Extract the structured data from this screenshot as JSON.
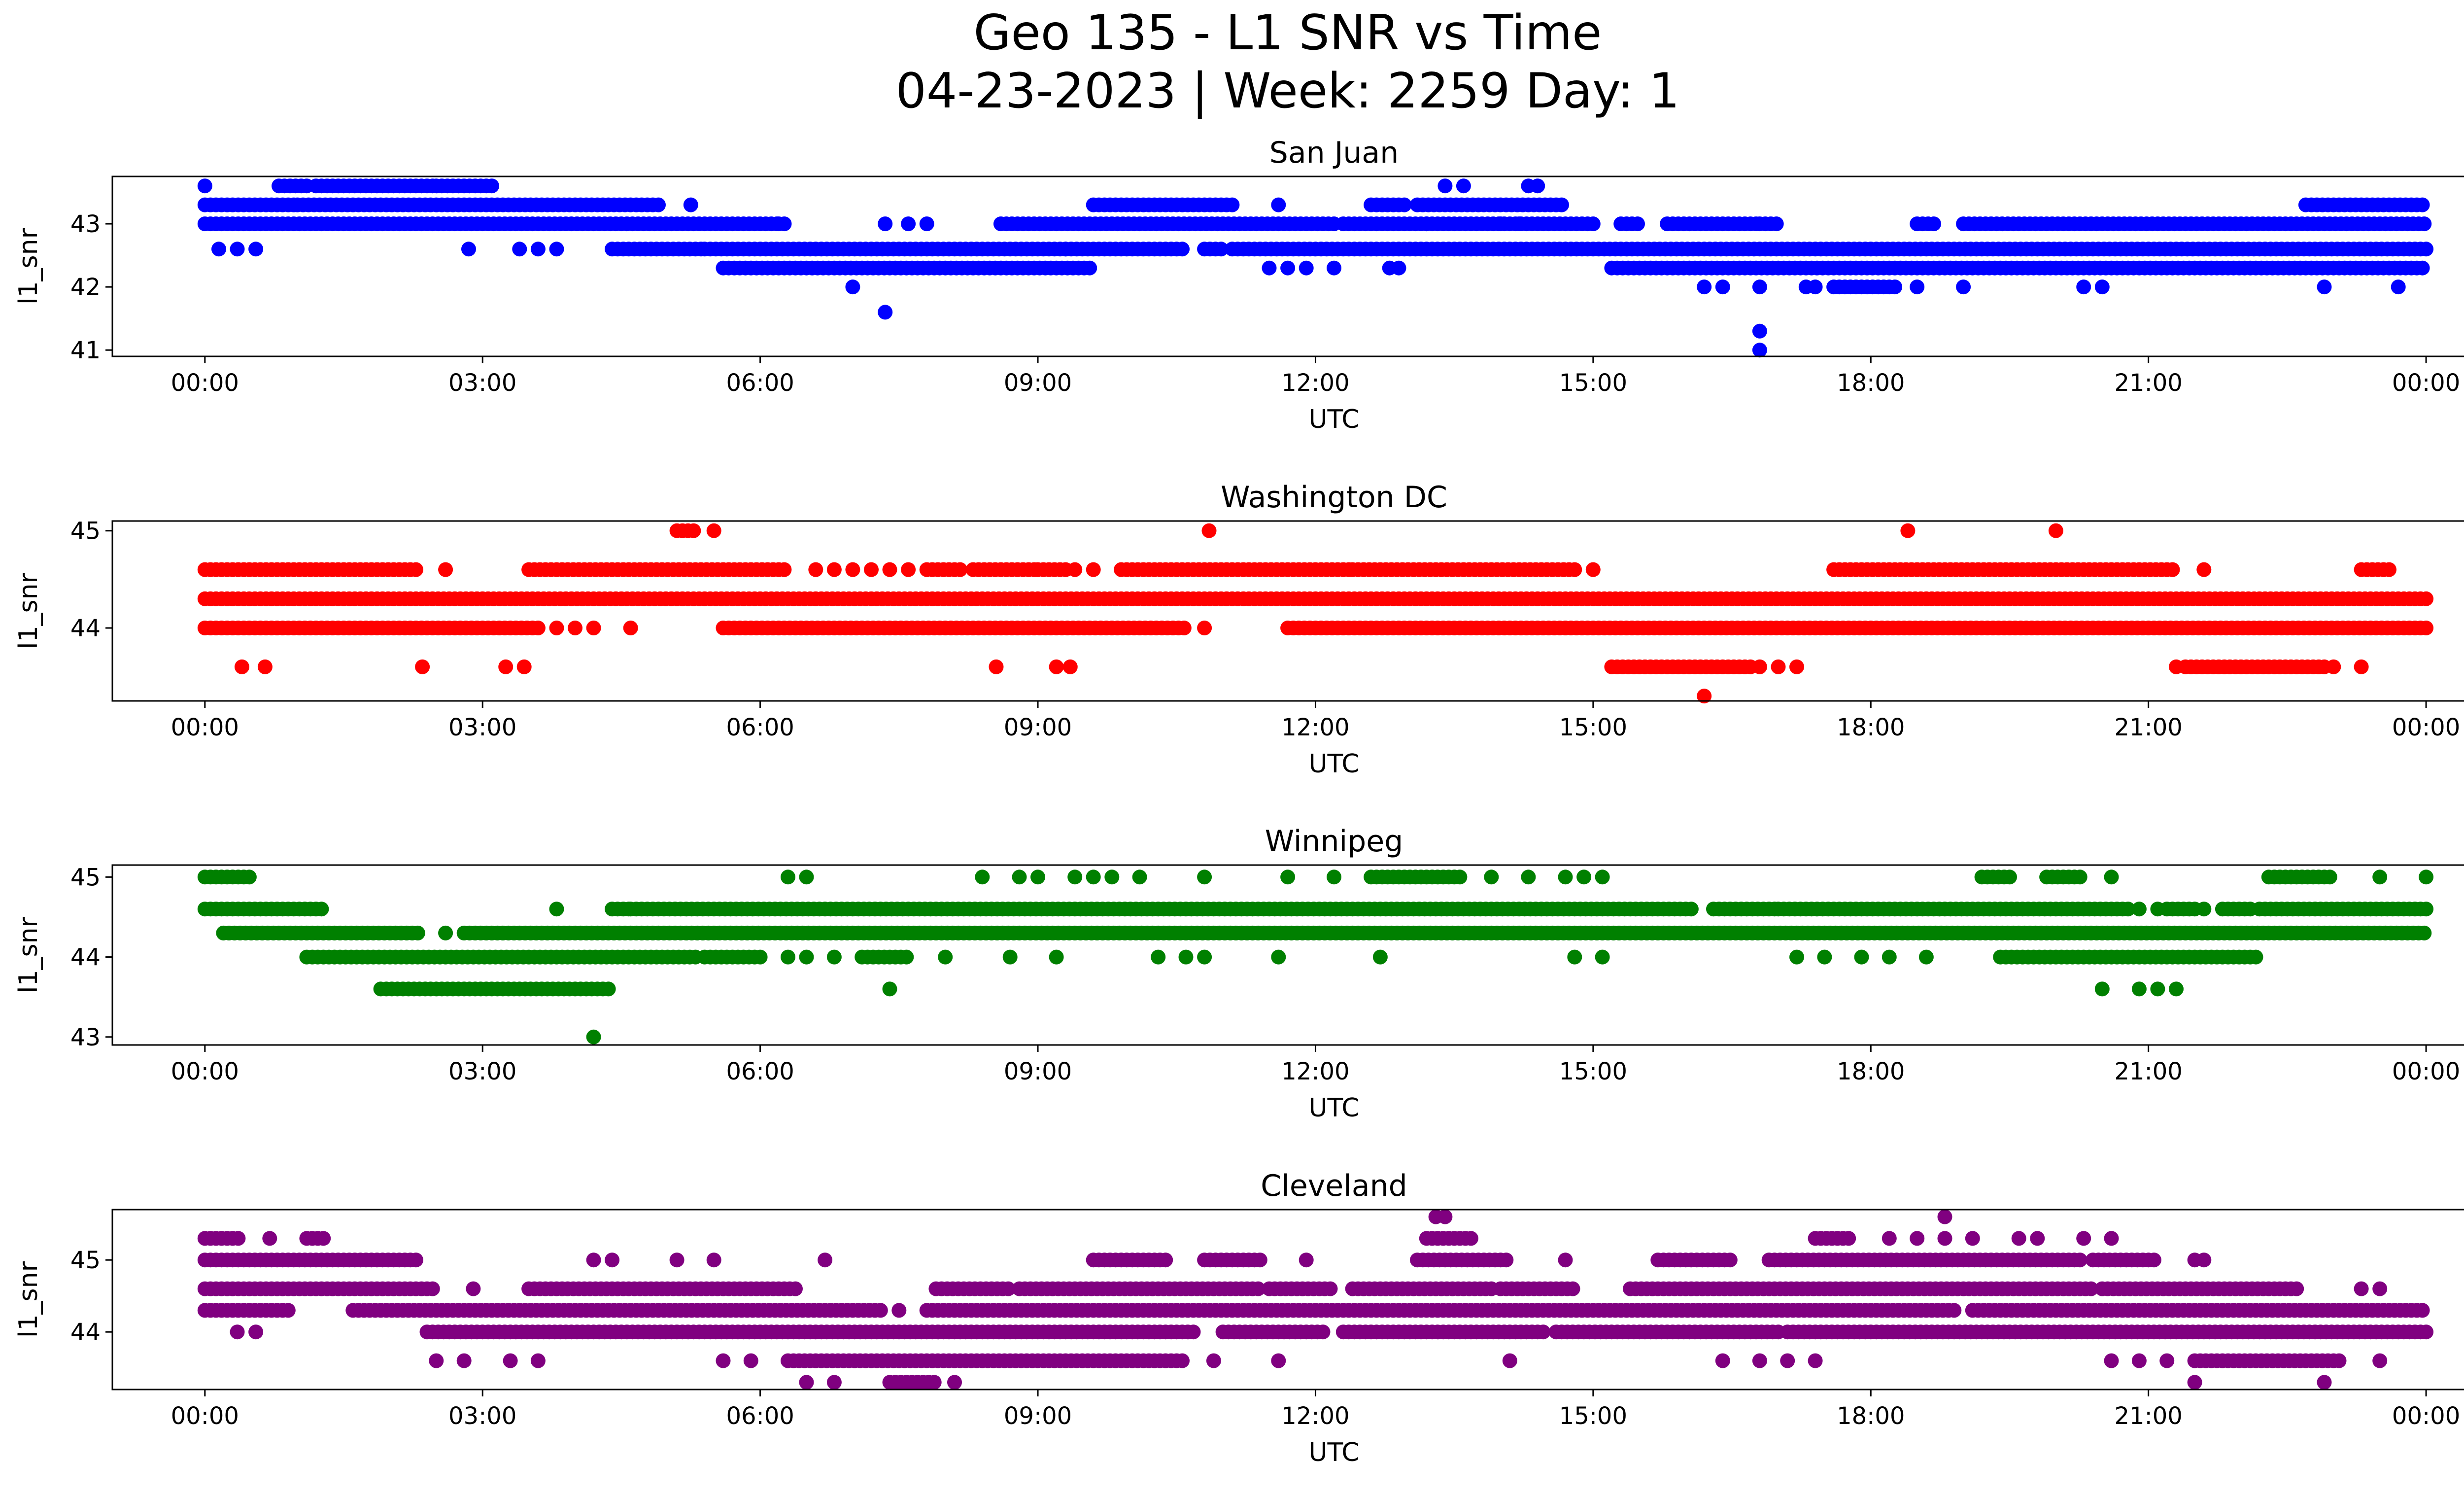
{
  "figure": {
    "title_line1": "Geo 135 - L1 SNR vs Time",
    "title_line2": "04-23-2023 | Week: 2259 Day: 1"
  },
  "chart_data": [
    {
      "type": "scatter",
      "title": "San Juan",
      "xlabel": "UTC",
      "ylabel": "l1_snr",
      "color": "#0000ff",
      "xticks": [
        "00:00",
        "03:00",
        "06:00",
        "09:00",
        "12:00",
        "15:00",
        "18:00",
        "21:00",
        "00:00"
      ],
      "yticks": [
        41,
        42,
        43
      ],
      "ylim": [
        40.9,
        43.75
      ],
      "rows": [
        {
          "y": 43.0,
          "segments": [
            [
              0.0,
              6.2
            ],
            [
              6.2,
              6.3
            ],
            [
              8.6,
              12.2
            ],
            [
              12.3,
              15.0
            ],
            [
              15.3,
              15.5
            ],
            [
              15.8,
              16.8
            ],
            [
              16.8,
              17.0
            ],
            [
              18.5,
              18.7
            ],
            [
              19.0,
              24.0
            ]
          ],
          "dots": [
            7.35,
            7.6,
            7.8,
            13.2,
            14.0,
            14.2
          ]
        },
        {
          "y": 43.3,
          "segments": [
            [
              0.0,
              1.0
            ],
            [
              1.0,
              4.9
            ],
            [
              9.6,
              11.1
            ],
            [
              12.6,
              13.0
            ],
            [
              13.1,
              14.7
            ],
            [
              22.7,
              24.0
            ]
          ],
          "dots": [
            5.25,
            11.6
          ]
        },
        {
          "y": 43.6,
          "segments": [
            [
              0.8,
              1.1
            ],
            [
              1.2,
              2.5
            ],
            [
              2.5,
              3.1
            ]
          ],
          "dots": [
            0.0,
            13.4,
            13.6,
            14.3,
            14.4
          ]
        },
        {
          "y": 42.6,
          "segments": [
            [
              4.4,
              5.4
            ],
            [
              5.4,
              9.3
            ],
            [
              9.3,
              10.6
            ],
            [
              10.8,
              11.0
            ],
            [
              11.1,
              14.7
            ],
            [
              14.7,
              24.0
            ]
          ],
          "dots": [
            0.15,
            0.35,
            0.55,
            2.85,
            3.4,
            3.6,
            3.8
          ]
        },
        {
          "y": 42.3,
          "segments": [
            [
              5.6,
              9.6
            ],
            [
              15.2,
              24.0
            ]
          ],
          "dots": [
            11.5,
            11.7,
            11.9,
            12.2,
            12.8,
            12.9
          ]
        },
        {
          "y": 42.0,
          "segments": [
            [
              17.6,
              18.3
            ]
          ],
          "dots": [
            7.0,
            16.2,
            16.4,
            16.8,
            17.3,
            17.4,
            18.5,
            19.0,
            20.3,
            20.5,
            22.9,
            23.7
          ]
        },
        {
          "y": 41.6,
          "segments": [],
          "dots": [
            7.35
          ]
        },
        {
          "y": 41.3,
          "segments": [],
          "dots": [
            16.8
          ]
        },
        {
          "y": 41.0,
          "segments": [],
          "dots": [
            16.8
          ]
        }
      ]
    },
    {
      "type": "scatter",
      "title": "Washington DC",
      "xlabel": "UTC",
      "ylabel": "l1_snr",
      "color": "#ff0000",
      "xticks": [
        "00:00",
        "03:00",
        "06:00",
        "09:00",
        "12:00",
        "15:00",
        "18:00",
        "21:00",
        "00:00"
      ],
      "yticks": [
        44,
        45
      ],
      "ylim": [
        43.25,
        45.1
      ],
      "rows": [
        {
          "y": 44.3,
          "segments": [
            [
              0.0,
              24.0
            ]
          ],
          "dots": []
        },
        {
          "y": 44.6,
          "segments": [
            [
              0.0,
              2.3
            ],
            [
              3.5,
              6.3
            ],
            [
              7.8,
              8.2
            ],
            [
              8.3,
              9.0
            ],
            [
              9.0,
              9.3
            ],
            [
              9.9,
              12.4
            ],
            [
              12.4,
              14.8
            ],
            [
              17.6,
              21.3
            ],
            [
              23.3,
              23.6
            ]
          ],
          "dots": [
            2.6,
            6.6,
            6.8,
            7.0,
            7.2,
            7.4,
            7.6,
            9.4,
            9.6,
            15.0,
            21.6
          ]
        },
        {
          "y": 44.0,
          "segments": [
            [
              0.0,
              3.6
            ],
            [
              5.6,
              10.6
            ],
            [
              11.7,
              14.7
            ],
            [
              14.7,
              24.0
            ]
          ],
          "dots": [
            3.8,
            4.0,
            4.2,
            4.6,
            10.8
          ]
        },
        {
          "y": 43.6,
          "segments": [
            [
              15.2,
              16.7
            ],
            [
              21.4,
              22.9
            ]
          ],
          "dots": [
            0.4,
            0.65,
            2.35,
            3.25,
            3.45,
            8.55,
            9.2,
            9.35,
            16.8,
            17.0,
            17.2,
            21.3,
            23.0,
            23.3
          ]
        },
        {
          "y": 45.0,
          "segments": [
            [
              5.1,
              5.3
            ]
          ],
          "dots": [
            5.5,
            10.85,
            18.4,
            20.0
          ]
        },
        {
          "y": 43.3,
          "segments": [],
          "dots": [
            16.2
          ]
        }
      ]
    },
    {
      "type": "scatter",
      "title": "Winnipeg",
      "xlabel": "UTC",
      "ylabel": "l1_snr",
      "color": "#008000",
      "xticks": [
        "00:00",
        "03:00",
        "06:00",
        "09:00",
        "12:00",
        "15:00",
        "18:00",
        "21:00",
        "00:00"
      ],
      "yticks": [
        43,
        44,
        45
      ],
      "ylim": [
        42.9,
        45.15
      ],
      "rows": [
        {
          "y": 44.3,
          "segments": [
            [
              0.2,
              2.3
            ],
            [
              2.8,
              24.0
            ]
          ],
          "dots": [
            2.6
          ]
        },
        {
          "y": 44.6,
          "segments": [
            [
              0.0,
              1.3
            ],
            [
              4.4,
              4.6
            ],
            [
              4.6,
              16.1
            ],
            [
              16.3,
              17.0
            ],
            [
              17.0,
              20.8
            ],
            [
              21.2,
              21.5
            ],
            [
              21.8,
              22.1
            ],
            [
              22.2,
              24.0
            ]
          ],
          "dots": [
            3.8,
            20.9,
            21.1,
            21.6
          ]
        },
        {
          "y": 44.0,
          "segments": [
            [
              1.1,
              5.3
            ],
            [
              5.4,
              6.0
            ],
            [
              7.1,
              7.6
            ],
            [
              19.4,
              22.2
            ]
          ],
          "dots": [
            6.3,
            6.5,
            6.8,
            8.0,
            8.7,
            9.2,
            10.3,
            10.6,
            10.8,
            11.6,
            12.7,
            14.8,
            15.1,
            17.2,
            17.5,
            17.9,
            18.2,
            18.6
          ]
        },
        {
          "y": 43.6,
          "segments": [
            [
              1.9,
              4.4
            ]
          ],
          "dots": [
            7.4,
            20.5,
            20.9,
            21.1,
            21.3
          ]
        },
        {
          "y": 45.0,
          "segments": [
            [
              0.0,
              0.5
            ],
            [
              12.6,
              13.6
            ],
            [
              19.2,
              19.5
            ],
            [
              19.9,
              20.3
            ],
            [
              22.3,
              23.0
            ]
          ],
          "dots": [
            6.3,
            6.5,
            8.4,
            8.8,
            9.0,
            9.4,
            9.6,
            9.8,
            10.1,
            10.8,
            11.7,
            12.2,
            13.9,
            14.3,
            14.7,
            14.9,
            15.1,
            20.6,
            23.5,
            24.0
          ]
        },
        {
          "y": 43.0,
          "segments": [],
          "dots": [
            4.2
          ]
        }
      ]
    },
    {
      "type": "scatter",
      "title": "Cleveland",
      "xlabel": "UTC",
      "ylabel": "l1_snr",
      "color": "#800080",
      "xticks": [
        "00:00",
        "03:00",
        "06:00",
        "09:00",
        "12:00",
        "15:00",
        "18:00",
        "21:00",
        "00:00"
      ],
      "yticks": [
        44,
        45
      ],
      "ylim": [
        43.2,
        45.7
      ],
      "rows": [
        {
          "y": 44.3,
          "segments": [
            [
              0.0,
              0.9
            ],
            [
              1.6,
              7.3
            ],
            [
              7.8,
              16.8
            ],
            [
              16.8,
              18.9
            ],
            [
              19.1,
              24.0
            ]
          ],
          "dots": [
            7.5
          ]
        },
        {
          "y": 44.0,
          "segments": [
            [
              2.4,
              10.7
            ],
            [
              11.0,
              12.1
            ],
            [
              12.3,
              14.5
            ],
            [
              14.6,
              17.0
            ],
            [
              17.1,
              24.0
            ]
          ],
          "dots": [
            0.35,
            0.55
          ]
        },
        {
          "y": 44.6,
          "segments": [
            [
              0.0,
              2.5
            ],
            [
              3.5,
              6.4
            ],
            [
              7.9,
              8.7
            ],
            [
              8.8,
              11.4
            ],
            [
              11.5,
              12.2
            ],
            [
              12.4,
              13.9
            ],
            [
              14.0,
              14.8
            ],
            [
              15.4,
              20.4
            ],
            [
              20.5,
              22.6
            ]
          ],
          "dots": [
            2.9,
            23.3,
            23.5
          ]
        },
        {
          "y": 45.0,
          "segments": [
            [
              0.0,
              2.3
            ],
            [
              9.6,
              10.4
            ],
            [
              10.8,
              11.4
            ],
            [
              13.1,
              14.1
            ],
            [
              15.7,
              16.5
            ],
            [
              16.9,
              20.3
            ],
            [
              20.4,
              21.1
            ]
          ],
          "dots": [
            4.2,
            4.4,
            5.1,
            5.5,
            6.7,
            11.9,
            14.7,
            21.5,
            21.6
          ]
        },
        {
          "y": 45.3,
          "segments": [
            [
              0.0,
              0.4
            ],
            [
              1.1,
              1.3
            ],
            [
              13.2,
              13.7
            ],
            [
              17.4,
              17.8
            ]
          ],
          "dots": [
            0.7,
            18.2,
            18.5,
            18.8,
            19.1,
            19.6,
            19.8,
            20.3,
            20.6
          ]
        },
        {
          "y": 45.6,
          "segments": [],
          "dots": [
            13.3,
            13.4,
            18.8
          ]
        },
        {
          "y": 43.6,
          "segments": [
            [
              6.3,
              10.6
            ],
            [
              21.5,
              23.1
            ]
          ],
          "dots": [
            2.5,
            2.8,
            3.3,
            3.6,
            5.6,
            5.9,
            10.9,
            11.6,
            14.1,
            16.4,
            16.8,
            17.1,
            17.4,
            20.6,
            20.9,
            21.2,
            23.5
          ]
        },
        {
          "y": 43.3,
          "segments": [
            [
              7.4,
              7.9
            ]
          ],
          "dots": [
            6.5,
            6.8,
            8.1,
            21.5,
            22.9
          ]
        }
      ]
    }
  ]
}
